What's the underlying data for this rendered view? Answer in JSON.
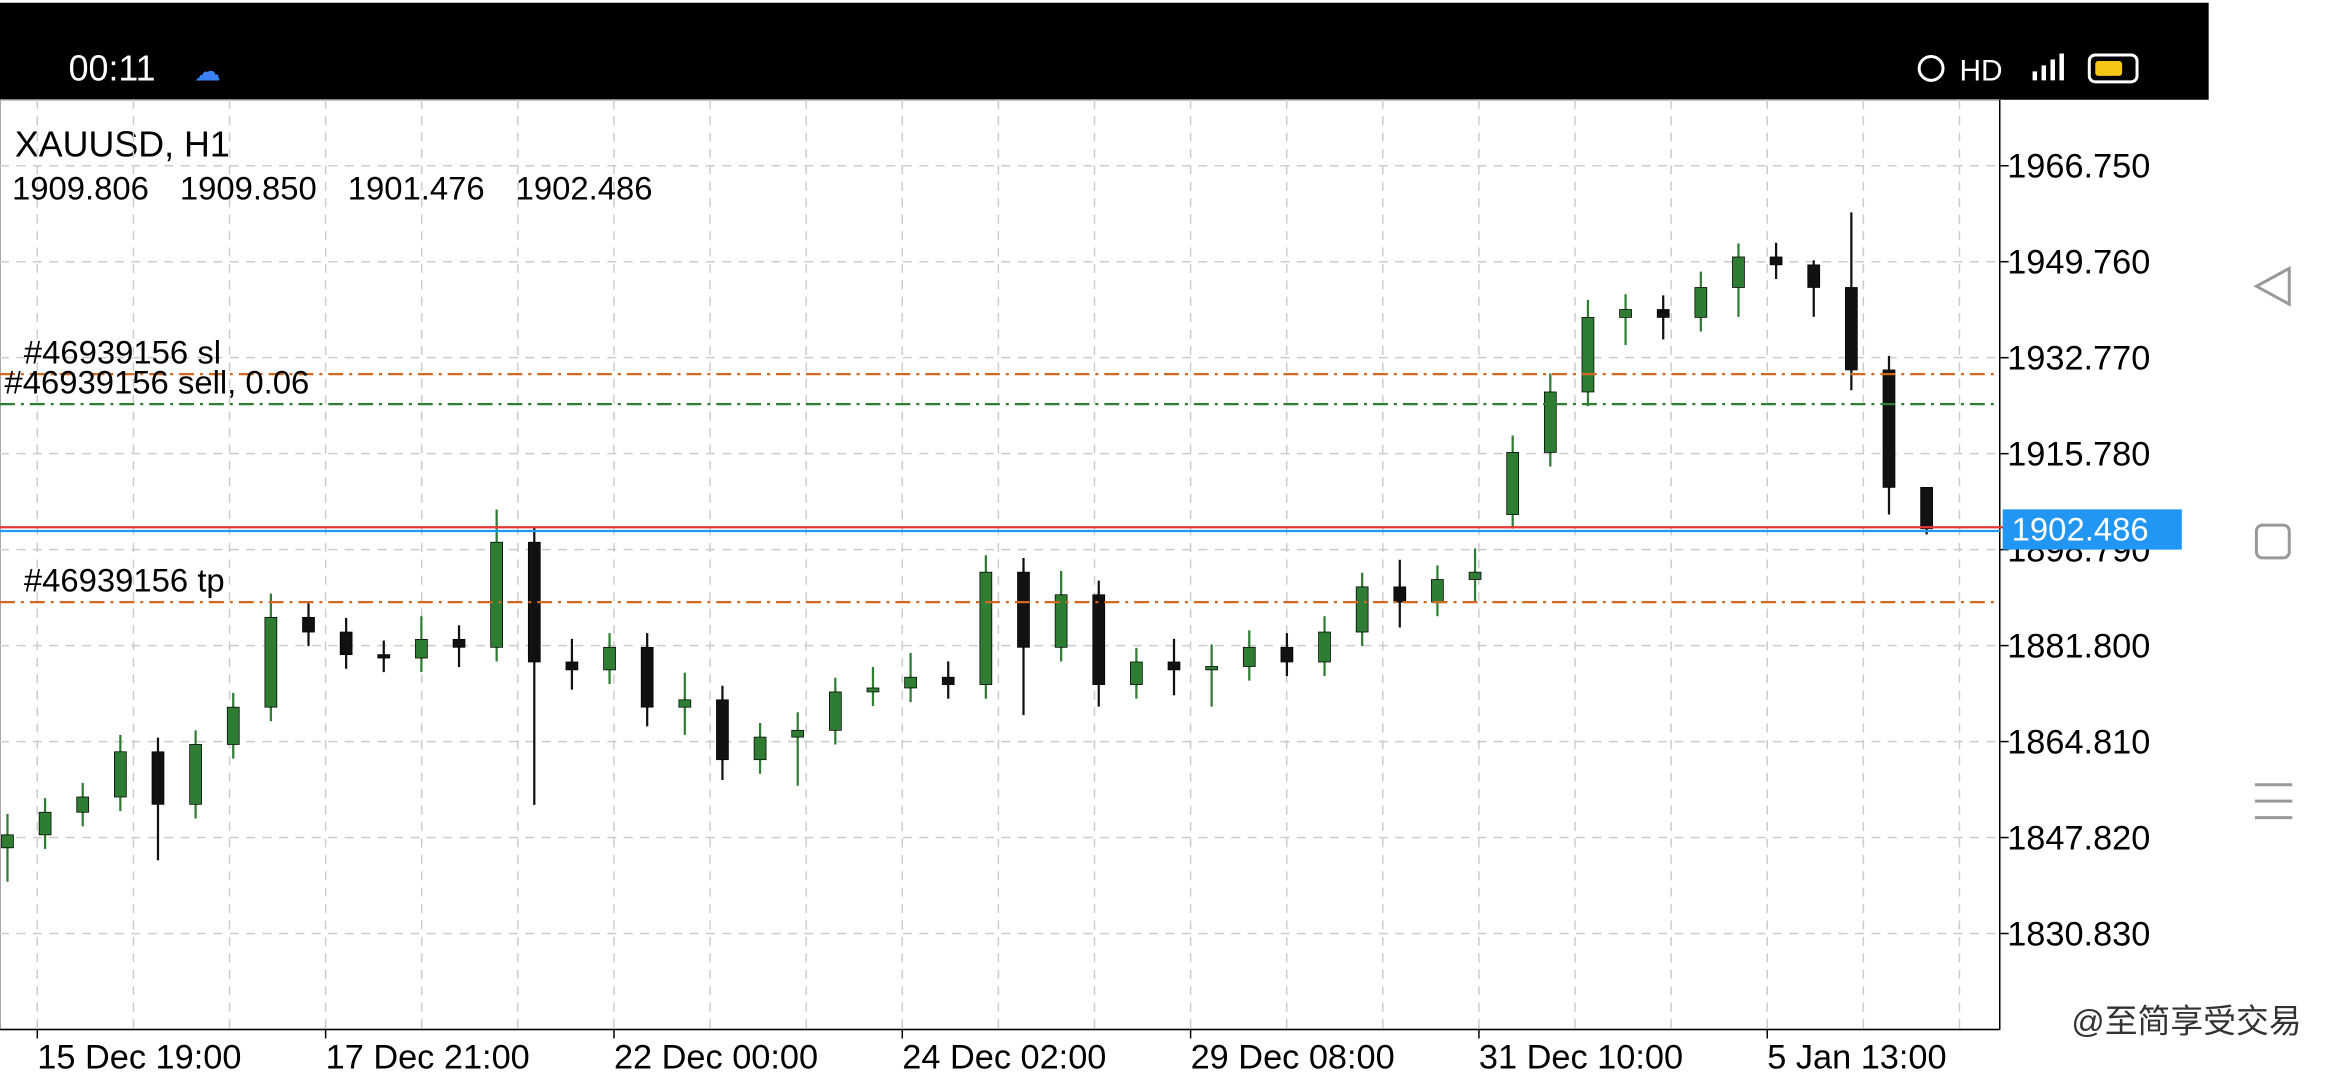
{
  "status_bar": {
    "time": "00:11",
    "network": "HD"
  },
  "chart_data": {
    "type": "candlestick",
    "title": "XAUUSD, H1",
    "ohlc_info": [
      "1909.806",
      "1909.850",
      "1901.476",
      "1902.486"
    ],
    "open": [
      1846.0,
      1848.3,
      1852.3,
      1855.0,
      1863.0,
      1853.7,
      1864.3,
      1870.9,
      1886.8,
      1884.2,
      1880.2,
      1879.6,
      1882.9,
      1881.5,
      1900.1,
      1878.9,
      1877.5,
      1881.5,
      1870.9,
      1872.2,
      1861.6,
      1865.6,
      1866.8,
      1873.6,
      1874.3,
      1876.2,
      1874.9,
      1894.8,
      1881.5,
      1890.8,
      1874.9,
      1878.9,
      1877.5,
      1878.1,
      1881.5,
      1878.9,
      1884.2,
      1892.2,
      1889.5,
      1893.5,
      1905.0,
      1916.0,
      1926.7,
      1939.9,
      1941.3,
      1939.9,
      1945.2,
      1950.6,
      1949.2,
      1945.2,
      1930.6,
      1909.806
    ],
    "high": [
      1852.0,
      1854.8,
      1857.5,
      1866.0,
      1865.5,
      1866.8,
      1873.4,
      1891.0,
      1889.3,
      1886.7,
      1882.7,
      1887.0,
      1885.4,
      1905.9,
      1902.6,
      1883.0,
      1884.0,
      1884.0,
      1877.0,
      1874.7,
      1868.1,
      1870.0,
      1876.1,
      1878.0,
      1880.5,
      1879.0,
      1897.8,
      1897.3,
      1895.0,
      1893.3,
      1881.4,
      1883.0,
      1882.0,
      1884.5,
      1884.0,
      1887.0,
      1894.7,
      1897.0,
      1896.0,
      1899.0,
      1919.0,
      1930.0,
      1943.0,
      1944.0,
      1943.8,
      1948.0,
      1953.0,
      1953.1,
      1950.0,
      1958.5,
      1933.1,
      1909.85
    ],
    "low": [
      1840.0,
      1845.8,
      1849.8,
      1852.5,
      1843.8,
      1851.2,
      1861.8,
      1868.4,
      1881.7,
      1877.7,
      1877.1,
      1877.1,
      1878.0,
      1879.0,
      1853.6,
      1874.0,
      1875.0,
      1867.5,
      1866.0,
      1858.0,
      1859.1,
      1857.0,
      1864.3,
      1871.1,
      1871.8,
      1872.4,
      1872.4,
      1869.5,
      1879.0,
      1871.0,
      1872.4,
      1873.0,
      1871.0,
      1875.6,
      1876.4,
      1876.4,
      1881.7,
      1885.0,
      1887.0,
      1889.5,
      1902.5,
      1913.5,
      1924.2,
      1935.0,
      1936.0,
      1937.4,
      1940.0,
      1946.7,
      1940.0,
      1927.0,
      1905.0,
      1901.476
    ],
    "close": [
      1848.3,
      1852.3,
      1855.0,
      1863.0,
      1853.7,
      1864.3,
      1870.9,
      1886.8,
      1884.2,
      1880.2,
      1879.6,
      1882.9,
      1881.5,
      1900.1,
      1878.9,
      1877.5,
      1881.5,
      1870.9,
      1872.2,
      1861.6,
      1865.6,
      1866.8,
      1873.6,
      1874.3,
      1876.2,
      1874.9,
      1894.8,
      1881.5,
      1890.8,
      1874.9,
      1878.9,
      1877.5,
      1878.1,
      1881.5,
      1878.9,
      1884.2,
      1892.2,
      1889.5,
      1893.5,
      1894.8,
      1916.0,
      1926.7,
      1939.9,
      1941.3,
      1939.9,
      1945.2,
      1950.6,
      1949.2,
      1945.2,
      1930.6,
      1909.806,
      1902.486
    ],
    "up_color": "#2e7d32",
    "down_color": "#111111",
    "ylim": [
      1813.84,
      1978.43
    ],
    "yticks": [
      {
        "value": 1966.75,
        "label": "1966.750"
      },
      {
        "value": 1949.76,
        "label": "1949.760"
      },
      {
        "value": 1932.77,
        "label": "1932.770"
      },
      {
        "value": 1915.78,
        "label": "1915.780"
      },
      {
        "value": 1898.79,
        "label": "1898.790"
      },
      {
        "value": 1881.8,
        "label": "1881.800"
      },
      {
        "value": 1864.81,
        "label": "1864.810"
      },
      {
        "value": 1847.82,
        "label": "1847.820"
      },
      {
        "value": 1830.83,
        "label": "1830.830"
      }
    ],
    "x_labels": [
      "15 Dec 19:00",
      "17 Dec 21:00",
      "22 Dec 00:00",
      "24 Dec 02:00",
      "29 Dec 08:00",
      "31 Dec 10:00",
      "5 Jan 13:00"
    ],
    "grid": true,
    "levels": [
      {
        "label": "#46939156 sl",
        "value": 1929.85,
        "color": "#d2691e"
      },
      {
        "label": "#46939156 sell, 0.06",
        "value": 1924.54,
        "color": "#2e7d32"
      },
      {
        "label": "#46939156 tp",
        "value": 1889.5,
        "color": "#d2691e"
      }
    ],
    "current_price": {
      "value": 1902.486,
      "label": "1902.486",
      "color": "#e53935",
      "label_color": "#2196f3"
    }
  },
  "watermark": "@至简享受交易"
}
